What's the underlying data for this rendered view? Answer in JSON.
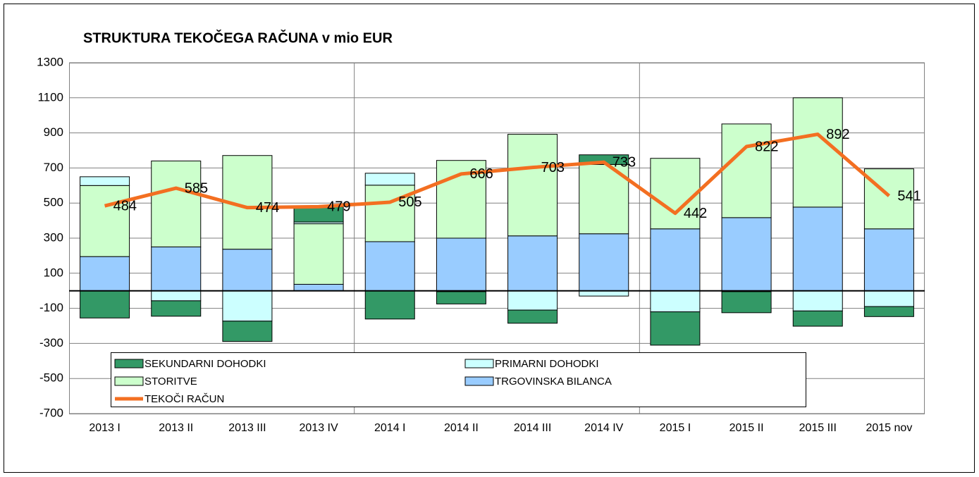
{
  "chart_data": {
    "type": "stacked_bar_line",
    "title": "STRUKTURA TEKOČEGA RAČUNA v mio EUR",
    "categories": [
      "2013 I",
      "2013 II",
      "2013 III",
      "2013 IV",
      "2014 I",
      "2014 II",
      "2014 III",
      "2014 IV",
      "2015 I",
      "2015 II",
      "2015 III",
      "2015 nov"
    ],
    "series": [
      {
        "name": "SEKUNDARNI DOHODKI",
        "type": "bar",
        "color": "#339966",
        "values": [
          -155,
          -88,
          -116,
          87,
          -161,
          -70,
          -75,
          55,
          -190,
          -120,
          -87,
          -57
        ]
      },
      {
        "name": "PRIMARNI DOHODKI",
        "type": "bar",
        "color": "#ccffff",
        "values": [
          50,
          -57,
          -173,
          10,
          68,
          -5,
          -110,
          -30,
          -120,
          -5,
          -115,
          -90
        ]
      },
      {
        "name": "STORITVE",
        "type": "bar",
        "color": "#ccffcc",
        "values": [
          405,
          490,
          534,
          345,
          322,
          443,
          579,
          395,
          402,
          534,
          623,
          342
        ]
      },
      {
        "name": "TRGOVINSKA BILANCA",
        "type": "bar",
        "color": "#99ccff",
        "values": [
          195,
          250,
          237,
          37,
          280,
          300,
          313,
          325,
          353,
          417,
          477,
          353
        ]
      },
      {
        "name": "TEKOČI RAČUN",
        "type": "line",
        "color": "#f36f21",
        "values": [
          484,
          585,
          474,
          479,
          505,
          666,
          703,
          733,
          442,
          822,
          892,
          541
        ]
      }
    ],
    "stack_order": [
      "TRGOVINSKA BILANCA",
      "STORITVE",
      "PRIMARNI DOHODKI",
      "SEKUNDARNI DOHODKI"
    ],
    "ylim": [
      -700,
      1300
    ],
    "yticks": [
      -700,
      -500,
      -300,
      -100,
      100,
      300,
      500,
      700,
      900,
      1100,
      1300
    ],
    "grid": true,
    "line_data_labels": true,
    "legend": "bottom"
  }
}
